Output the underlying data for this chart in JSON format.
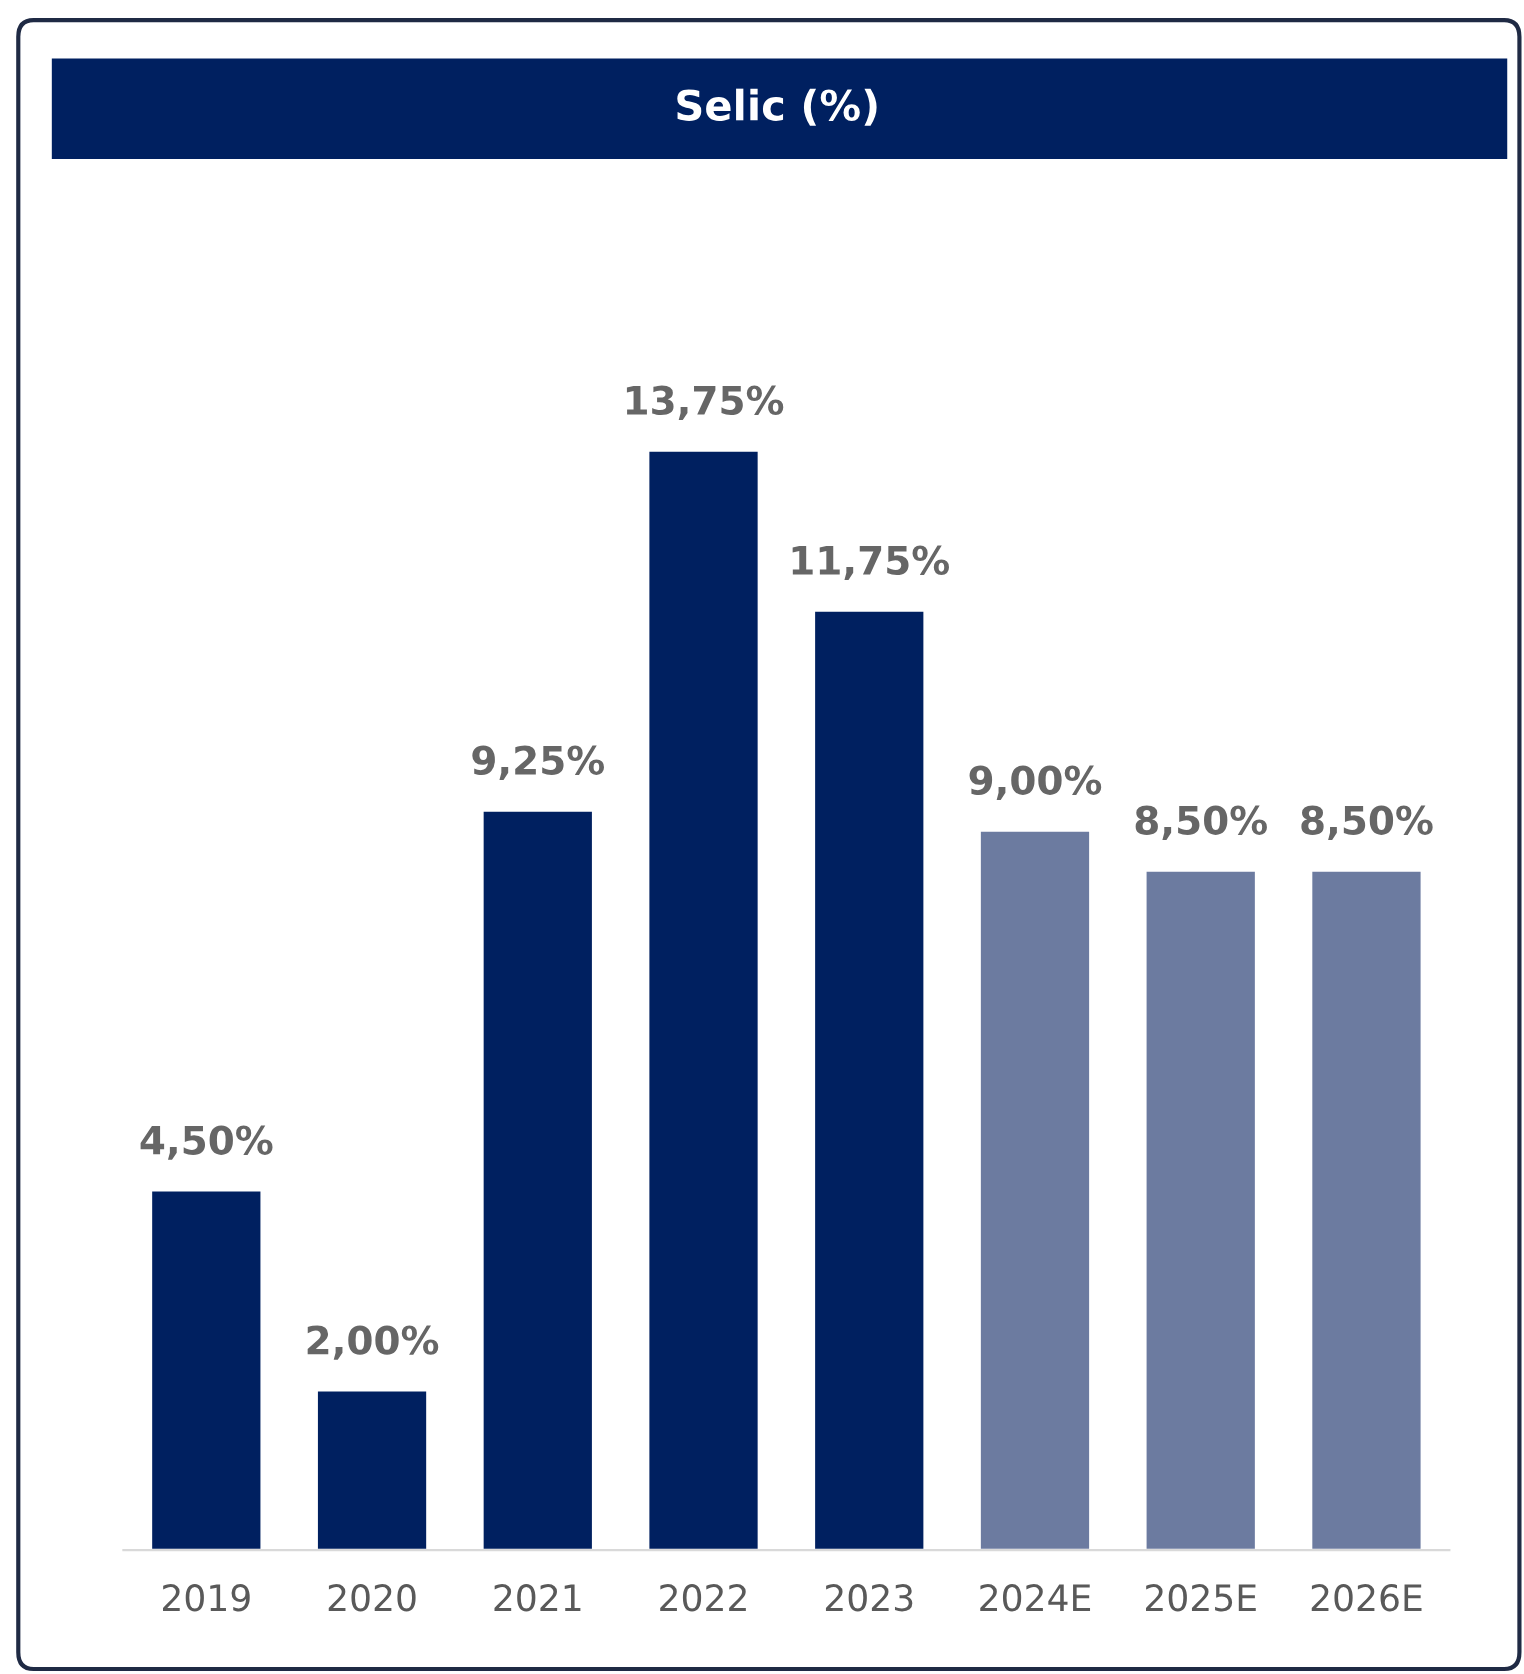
{
  "chart_data": {
    "type": "bar",
    "title": "Selic (%)",
    "categories": [
      "2019",
      "2020",
      "2021",
      "2022",
      "2023",
      "2024E",
      "2025E",
      "2026E"
    ],
    "values": [
      4.5,
      2.0,
      9.25,
      13.75,
      11.75,
      9.0,
      8.5,
      8.5
    ],
    "value_labels": [
      "4,50%",
      "2,00%",
      "9,25%",
      "13,75%",
      "11,75%",
      "9,00%",
      "8,50%",
      "8,50%"
    ],
    "colors": [
      "#002060",
      "#002060",
      "#002060",
      "#002060",
      "#002060",
      "#6c7ba0",
      "#6c7ba0",
      "#6c7ba0"
    ],
    "grid": false,
    "legend": false
  }
}
